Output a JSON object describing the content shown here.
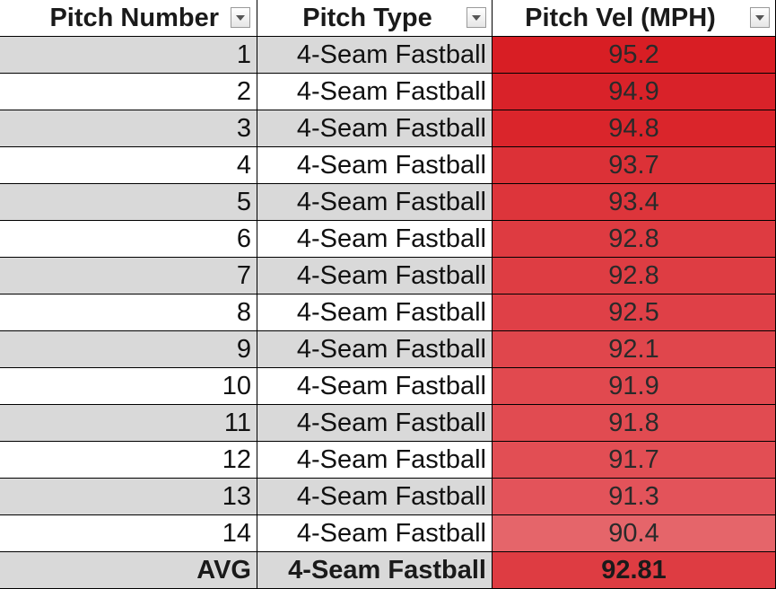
{
  "columns": {
    "pitch_number": "Pitch Number",
    "pitch_type": "Pitch Type",
    "pitch_vel": "Pitch Vel (MPH)"
  },
  "rows": [
    {
      "number": "1",
      "type": "4-Seam Fastball",
      "vel": "95.2",
      "color": "#d81e24"
    },
    {
      "number": "2",
      "type": "4-Seam Fastball",
      "vel": "94.9",
      "color": "#d92229"
    },
    {
      "number": "3",
      "type": "4-Seam Fastball",
      "vel": "94.8",
      "color": "#da252b"
    },
    {
      "number": "4",
      "type": "4-Seam Fastball",
      "vel": "93.7",
      "color": "#dc3137"
    },
    {
      "number": "5",
      "type": "4-Seam Fastball",
      "vel": "93.4",
      "color": "#dd353b"
    },
    {
      "number": "6",
      "type": "4-Seam Fastball",
      "vel": "92.8",
      "color": "#de3b41"
    },
    {
      "number": "7",
      "type": "4-Seam Fastball",
      "vel": "92.8",
      "color": "#de3d43"
    },
    {
      "number": "8",
      "type": "4-Seam Fastball",
      "vel": "92.5",
      "color": "#df4047"
    },
    {
      "number": "9",
      "type": "4-Seam Fastball",
      "vel": "92.1",
      "color": "#e0464c"
    },
    {
      "number": "10",
      "type": "4-Seam Fastball",
      "vel": "91.9",
      "color": "#e1494f"
    },
    {
      "number": "11",
      "type": "4-Seam Fastball",
      "vel": "91.8",
      "color": "#e14b51"
    },
    {
      "number": "12",
      "type": "4-Seam Fastball",
      "vel": "91.7",
      "color": "#e24e54"
    },
    {
      "number": "13",
      "type": "4-Seam Fastball",
      "vel": "91.3",
      "color": "#e3535a"
    },
    {
      "number": "14",
      "type": "4-Seam Fastball",
      "vel": "90.4",
      "color": "#e5656a"
    }
  ],
  "summary": {
    "label": "AVG",
    "type": "4-Seam Fastball",
    "vel": "92.81",
    "color": "#de3c42"
  },
  "filter_icon": "dropdown-arrow"
}
